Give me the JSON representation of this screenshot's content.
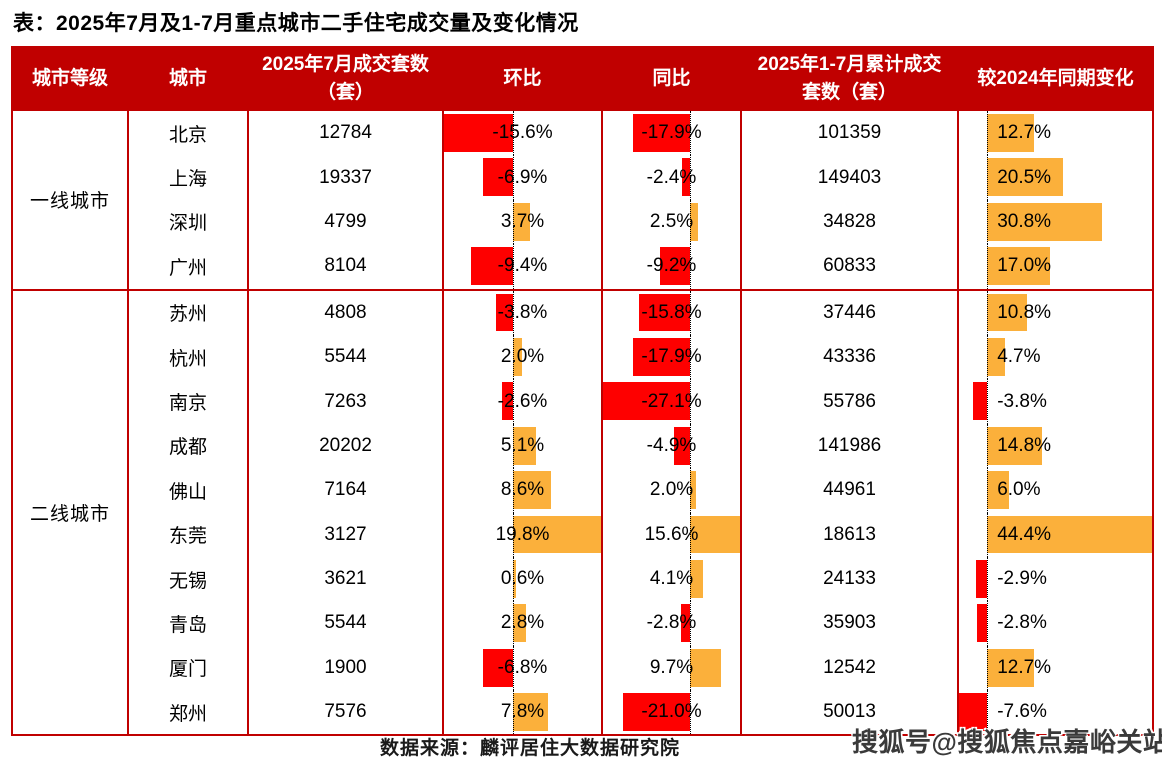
{
  "footer": {
    "source": "数据来源：麟评居住大数据研究院",
    "watermark": "搜狐号@搜狐焦点嘉峪关站"
  },
  "colors": {
    "header_bg": "#C00000",
    "table_border": "#C00000",
    "bar_negative": "#FE0000",
    "bar_positive": "#FBB03B",
    "header_text": "#FFFFFF",
    "body_text": "#000000"
  },
  "chart_data": {
    "type": "table",
    "title": "表：2025年7月及1-7月重点城市二手住宅成交量及变化情况",
    "columns": [
      "城市等级",
      "城市",
      "2025年7月成交套数（套）",
      "环比",
      "同比",
      "2025年1-7月累计成交套数（套）",
      "较2024年同期变化"
    ],
    "bar_columns_note": "环比 / 同比 / 较2024年同期变化 three columns are rendered as in-cell data bars: negative = red extending left of dotted zero axis, positive = orange extending right; each column scaled so min and max span the full cell width",
    "groups": [
      {
        "tier": "一线城市",
        "rows": [
          {
            "city": "北京",
            "jul_units": 12784,
            "mom_pct": -15.6,
            "yoy_pct": -17.9,
            "cum_units": 101359,
            "vs2024_pct": 12.7
          },
          {
            "city": "上海",
            "jul_units": 19337,
            "mom_pct": -6.9,
            "yoy_pct": -2.4,
            "cum_units": 149403,
            "vs2024_pct": 20.5
          },
          {
            "city": "深圳",
            "jul_units": 4799,
            "mom_pct": 3.7,
            "yoy_pct": 2.5,
            "cum_units": 34828,
            "vs2024_pct": 30.8
          },
          {
            "city": "广州",
            "jul_units": 8104,
            "mom_pct": -9.4,
            "yoy_pct": -9.2,
            "cum_units": 60833,
            "vs2024_pct": 17.0
          }
        ]
      },
      {
        "tier": "二线城市",
        "rows": [
          {
            "city": "苏州",
            "jul_units": 4808,
            "mom_pct": -3.8,
            "yoy_pct": -15.8,
            "cum_units": 37446,
            "vs2024_pct": 10.8
          },
          {
            "city": "杭州",
            "jul_units": 5544,
            "mom_pct": 2.0,
            "yoy_pct": -17.9,
            "cum_units": 43336,
            "vs2024_pct": 4.7
          },
          {
            "city": "南京",
            "jul_units": 7263,
            "mom_pct": -2.6,
            "yoy_pct": -27.1,
            "cum_units": 55786,
            "vs2024_pct": -3.8
          },
          {
            "city": "成都",
            "jul_units": 20202,
            "mom_pct": 5.1,
            "yoy_pct": -4.9,
            "cum_units": 141986,
            "vs2024_pct": 14.8
          },
          {
            "city": "佛山",
            "jul_units": 7164,
            "mom_pct": 8.6,
            "yoy_pct": 2.0,
            "cum_units": 44961,
            "vs2024_pct": 6.0
          },
          {
            "city": "东莞",
            "jul_units": 3127,
            "mom_pct": 19.8,
            "yoy_pct": 15.6,
            "cum_units": 18613,
            "vs2024_pct": 44.4
          },
          {
            "city": "无锡",
            "jul_units": 3621,
            "mom_pct": 0.6,
            "yoy_pct": 4.1,
            "cum_units": 24133,
            "vs2024_pct": -2.9
          },
          {
            "city": "青岛",
            "jul_units": 5544,
            "mom_pct": 2.8,
            "yoy_pct": -2.8,
            "cum_units": 35903,
            "vs2024_pct": -2.8
          },
          {
            "city": "厦门",
            "jul_units": 1900,
            "mom_pct": -6.8,
            "yoy_pct": 9.7,
            "cum_units": 12542,
            "vs2024_pct": 12.7
          },
          {
            "city": "郑州",
            "jul_units": 7576,
            "mom_pct": 7.8,
            "yoy_pct": -21.0,
            "cum_units": 50013,
            "vs2024_pct": -7.6
          }
        ]
      }
    ]
  }
}
